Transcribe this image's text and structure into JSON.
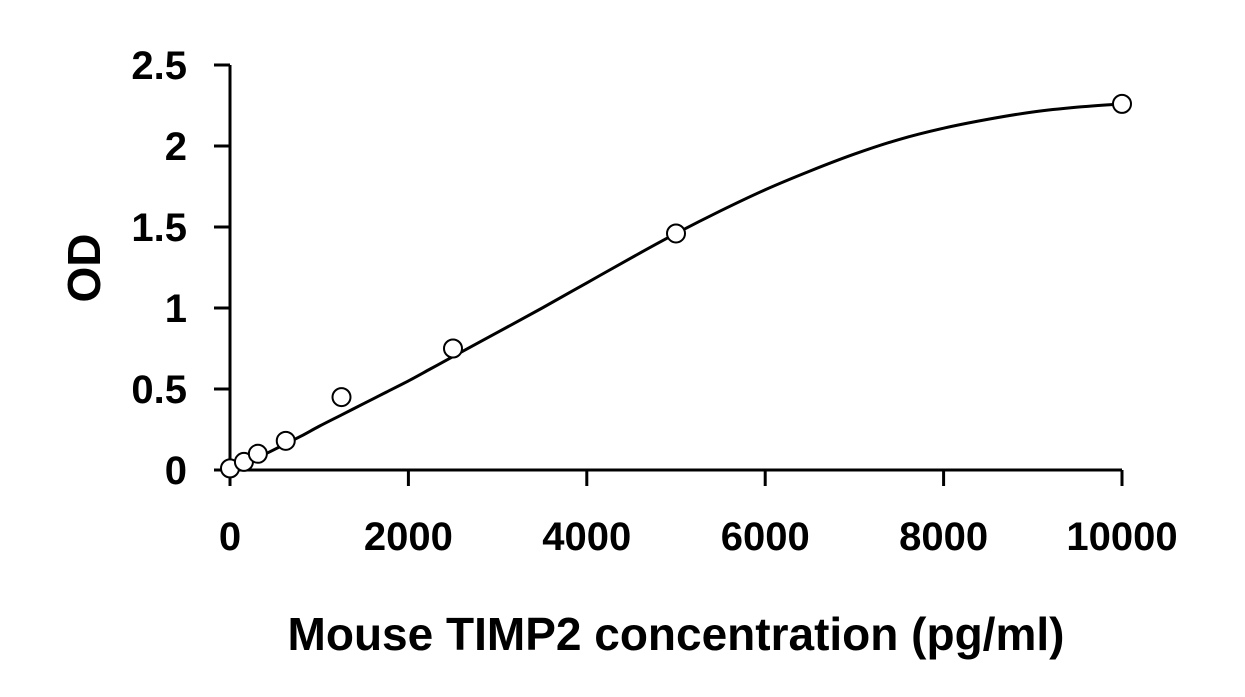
{
  "chart_data": {
    "type": "scatter",
    "title": "",
    "xlabel": "Mouse TIMP2 concentration (pg/ml)",
    "ylabel": "OD",
    "xlim": [
      0,
      10000
    ],
    "ylim": [
      0,
      2.5
    ],
    "x_ticks": [
      0,
      2000,
      4000,
      6000,
      8000,
      10000
    ],
    "x_tick_labels": [
      "0",
      "2000",
      "4000",
      "6000",
      "8000",
      "10000"
    ],
    "y_ticks": [
      0,
      0.5,
      1,
      1.5,
      2,
      2.5
    ],
    "y_tick_labels": [
      "0",
      "0.5",
      "1",
      "1.5",
      "2",
      "2.5"
    ],
    "grid": false,
    "legend": "none",
    "marker": "open-circle",
    "curve": "fitted",
    "color": "#000000",
    "series": [
      {
        "x": [
          0,
          156.25,
          312.5,
          625,
          1250,
          2500,
          5000,
          10000
        ],
        "y": [
          0.01,
          0.05,
          0.1,
          0.18,
          0.45,
          0.75,
          1.46,
          2.26
        ]
      }
    ],
    "fit_curve": {
      "x": [
        0,
        200,
        400,
        600,
        800,
        1000,
        1250,
        1500,
        1750,
        2000,
        2250,
        2500,
        3000,
        3500,
        4000,
        4500,
        5000,
        5500,
        6000,
        6500,
        7000,
        7500,
        8000,
        8500,
        9000,
        9500,
        10000
      ],
      "y": [
        0.0,
        0.05,
        0.1,
        0.155,
        0.21,
        0.27,
        0.34,
        0.41,
        0.48,
        0.55,
        0.625,
        0.7,
        0.85,
        1.0,
        1.155,
        1.31,
        1.46,
        1.6,
        1.73,
        1.845,
        1.95,
        2.04,
        2.11,
        2.165,
        2.21,
        2.24,
        2.26
      ]
    }
  }
}
